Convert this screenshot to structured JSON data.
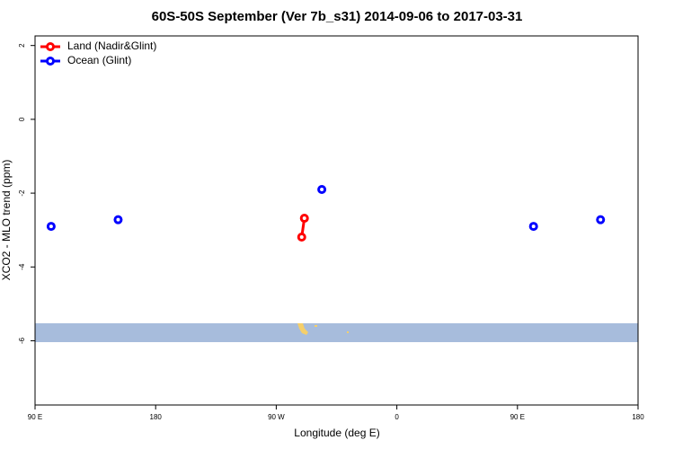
{
  "chart_data": {
    "type": "line",
    "title": "60S-50S September (Ver 7b_s31)   2014-09-06 to 2017-03-31",
    "x_label": "Longitude (deg E)",
    "y_label": "XCO2 - MLO trend (ppm)",
    "xlim": [
      90,
      540
    ],
    "xticks": [
      {
        "value": 90,
        "label": "90 E"
      },
      180,
      {
        "value": 270,
        "label": "90 W"
      },
      {
        "value": 360,
        "label": "0"
      },
      {
        "value": 450,
        "label": "90 E"
      },
      {
        "value": 540,
        "label": "180"
      }
    ],
    "ylim": [
      -7.74,
      2.26
    ],
    "yticks": [
      2,
      0,
      -2,
      -4,
      -6
    ],
    "legend": "top-left",
    "series": [
      {
        "name": "Land (Nadir&Glint)",
        "color": "#ff0000",
        "connect": true,
        "x": [
          289,
          291
        ],
        "values": [
          -3.19,
          -2.68
        ]
      },
      {
        "name": "Ocean (Glint)",
        "color": "#0000ff",
        "connect": false,
        "x": [
          102,
          152,
          304,
          462,
          512
        ],
        "values": [
          -2.9,
          -2.72,
          -1.9,
          -2.9,
          -2.72
        ]
      }
    ]
  }
}
